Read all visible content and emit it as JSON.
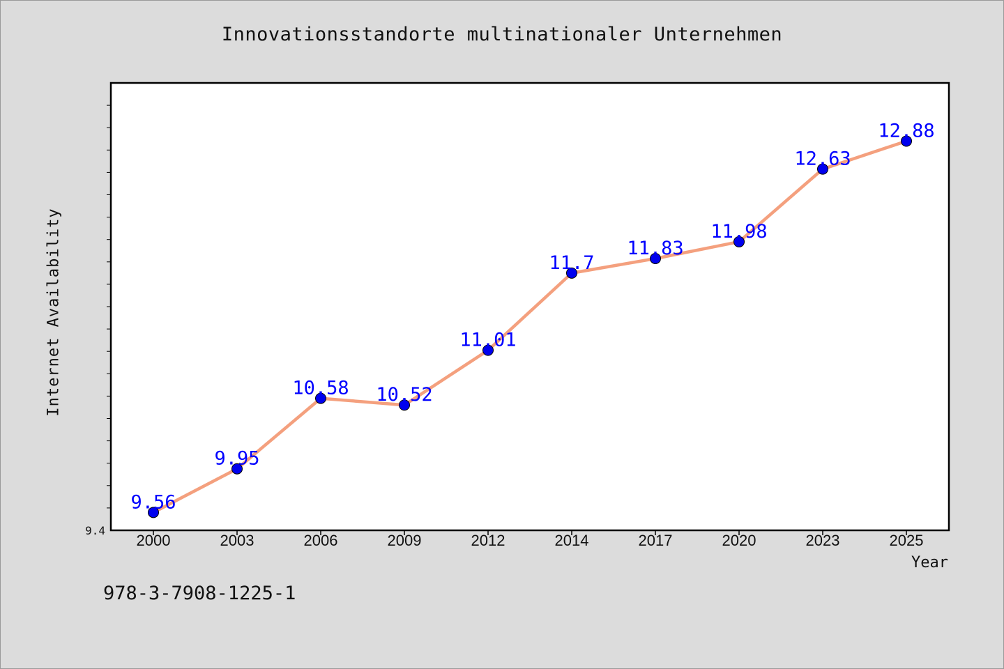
{
  "chart_data": {
    "type": "line",
    "title": "Innovationsstandorte multinationaler Unternehmen",
    "xlabel": "Year",
    "ylabel": "Internet Availability",
    "categories": [
      "2000",
      "2003",
      "2006",
      "2009",
      "2012",
      "2014",
      "2017",
      "2020",
      "2023",
      "2025"
    ],
    "series": [
      {
        "values": [
          9.56,
          9.95,
          10.58,
          10.52,
          11.01,
          11.7,
          11.83,
          11.98,
          12.63,
          12.88
        ]
      }
    ],
    "y_tick_labels": [
      "9.4"
    ],
    "ylim": [
      9.4,
      13.4
    ],
    "grid": false,
    "legend": "none",
    "colors": {
      "line": "#f4a07e",
      "marker": "#0000ee",
      "data_label": "#0000ff",
      "plot_bg": "#ffffff",
      "page_bg": "#dcdcdc"
    }
  },
  "footer_note": "978-3-7908-1225-1"
}
